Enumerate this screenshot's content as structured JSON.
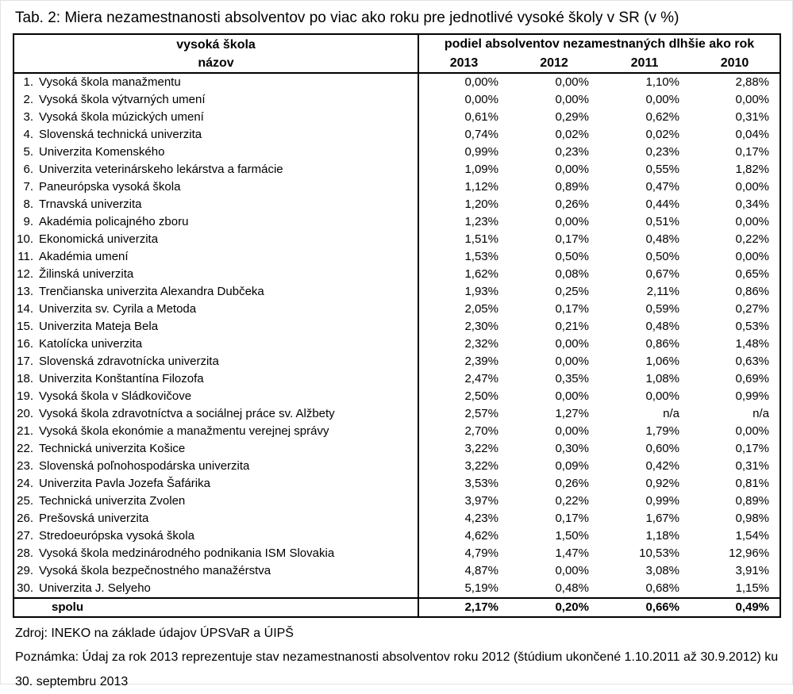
{
  "page": {
    "title": "Tab. 2: Miera nezamestnanosti absolventov po viac ako roku pre jednotlivé vysoké školy v SR (v %)"
  },
  "colors": {
    "text": "#000000",
    "border": "#000000",
    "background": "#ffffff"
  },
  "table": {
    "col1_header_line1": "vysoká škola",
    "col1_header_line2": "názov",
    "values_header": "podiel absolventov nezamestnaných dlhšie ako rok",
    "years": [
      "2013",
      "2012",
      "2011",
      "2010"
    ],
    "rows": [
      {
        "num": "1.",
        "name": "Vysoká škola manažmentu",
        "values": [
          "0,00%",
          "0,00%",
          "1,10%",
          "2,88%"
        ]
      },
      {
        "num": "2.",
        "name": "Vysoká škola výtvarných umení",
        "values": [
          "0,00%",
          "0,00%",
          "0,00%",
          "0,00%"
        ]
      },
      {
        "num": "3.",
        "name": "Vysoká škola múzických umení",
        "values": [
          "0,61%",
          "0,29%",
          "0,62%",
          "0,31%"
        ]
      },
      {
        "num": "4.",
        "name": "Slovenská technická univerzita",
        "values": [
          "0,74%",
          "0,02%",
          "0,02%",
          "0,04%"
        ]
      },
      {
        "num": "5.",
        "name": "Univerzita Komenského",
        "values": [
          "0,99%",
          "0,23%",
          "0,23%",
          "0,17%"
        ]
      },
      {
        "num": "6.",
        "name": "Univerzita veterinárskeho lekárstva a farmácie",
        "values": [
          "1,09%",
          "0,00%",
          "0,55%",
          "1,82%"
        ]
      },
      {
        "num": "7.",
        "name": "Paneurópska vysoká škola",
        "values": [
          "1,12%",
          "0,89%",
          "0,47%",
          "0,00%"
        ]
      },
      {
        "num": "8.",
        "name": "Trnavská univerzita",
        "values": [
          "1,20%",
          "0,26%",
          "0,44%",
          "0,34%"
        ]
      },
      {
        "num": "9.",
        "name": "Akadémia policajného zboru",
        "values": [
          "1,23%",
          "0,00%",
          "0,51%",
          "0,00%"
        ]
      },
      {
        "num": "10.",
        "name": "Ekonomická univerzita",
        "values": [
          "1,51%",
          "0,17%",
          "0,48%",
          "0,22%"
        ]
      },
      {
        "num": "11.",
        "name": "Akadémia umení",
        "values": [
          "1,53%",
          "0,50%",
          "0,50%",
          "0,00%"
        ]
      },
      {
        "num": "12.",
        "name": "Žilinská univerzita",
        "values": [
          "1,62%",
          "0,08%",
          "0,67%",
          "0,65%"
        ]
      },
      {
        "num": "13.",
        "name": "Trenčianska univerzita Alexandra Dubčeka",
        "values": [
          "1,93%",
          "0,25%",
          "2,11%",
          "0,86%"
        ]
      },
      {
        "num": "14.",
        "name": "Univerzita sv. Cyrila a Metoda",
        "values": [
          "2,05%",
          "0,17%",
          "0,59%",
          "0,27%"
        ]
      },
      {
        "num": "15.",
        "name": "Univerzita Mateja Bela",
        "values": [
          "2,30%",
          "0,21%",
          "0,48%",
          "0,53%"
        ]
      },
      {
        "num": "16.",
        "name": "Katolícka univerzita",
        "values": [
          "2,32%",
          "0,00%",
          "0,86%",
          "1,48%"
        ]
      },
      {
        "num": "17.",
        "name": "Slovenská zdravotnícka univerzita",
        "values": [
          "2,39%",
          "0,00%",
          "1,06%",
          "0,63%"
        ]
      },
      {
        "num": "18.",
        "name": "Univerzita Konštantína Filozofa",
        "values": [
          "2,47%",
          "0,35%",
          "1,08%",
          "0,69%"
        ]
      },
      {
        "num": "19.",
        "name": "Vysoká škola v Sládkovičove",
        "values": [
          "2,50%",
          "0,00%",
          "0,00%",
          "0,99%"
        ]
      },
      {
        "num": "20.",
        "name": "Vysoká škola zdravotníctva a sociálnej práce sv. Alžbety",
        "values": [
          "2,57%",
          "1,27%",
          "n/a",
          "n/a"
        ]
      },
      {
        "num": "21.",
        "name": "Vysoká škola ekonómie a manažmentu verejnej správy",
        "values": [
          "2,70%",
          "0,00%",
          "1,79%",
          "0,00%"
        ]
      },
      {
        "num": "22.",
        "name": "Technická univerzita Košice",
        "values": [
          "3,22%",
          "0,30%",
          "0,60%",
          "0,17%"
        ]
      },
      {
        "num": "23.",
        "name": "Slovenská poľnohospodárska univerzita",
        "values": [
          "3,22%",
          "0,09%",
          "0,42%",
          "0,31%"
        ]
      },
      {
        "num": "24.",
        "name": "Univerzita Pavla Jozefa Šafárika",
        "values": [
          "3,53%",
          "0,26%",
          "0,92%",
          "0,81%"
        ]
      },
      {
        "num": "25.",
        "name": "Technická univerzita Zvolen",
        "values": [
          "3,97%",
          "0,22%",
          "0,99%",
          "0,89%"
        ]
      },
      {
        "num": "26.",
        "name": "Prešovská univerzita",
        "values": [
          "4,23%",
          "0,17%",
          "1,67%",
          "0,98%"
        ]
      },
      {
        "num": "27.",
        "name": "Stredoeurópska vysoká škola",
        "values": [
          "4,62%",
          "1,50%",
          "1,18%",
          "1,54%"
        ]
      },
      {
        "num": "28.",
        "name": "Vysoká škola medzinárodného podnikania ISM Slovakia",
        "values": [
          "4,79%",
          "1,47%",
          "10,53%",
          "12,96%"
        ]
      },
      {
        "num": "29.",
        "name": "Vysoká škola bezpečnostného manažérstva",
        "values": [
          "4,87%",
          "0,00%",
          "3,08%",
          "3,91%"
        ]
      },
      {
        "num": "30.",
        "name": "Univerzita J. Selyeho",
        "values": [
          "5,19%",
          "0,48%",
          "0,68%",
          "1,15%"
        ]
      }
    ],
    "total": {
      "label": "spolu",
      "values": [
        "2,17%",
        "0,20%",
        "0,66%",
        "0,49%"
      ]
    }
  },
  "footer": {
    "source": "Zdroj: INEKO na základe údajov ÚPSVaR a ÚIPŠ",
    "note": "Poznámka: Údaj za rok 2013 reprezentuje stav nezamestnanosti absolventov roku 2012 (štúdium ukončené 1.10.2011 až 30.9.2012) ku 30. septembru 2013"
  }
}
